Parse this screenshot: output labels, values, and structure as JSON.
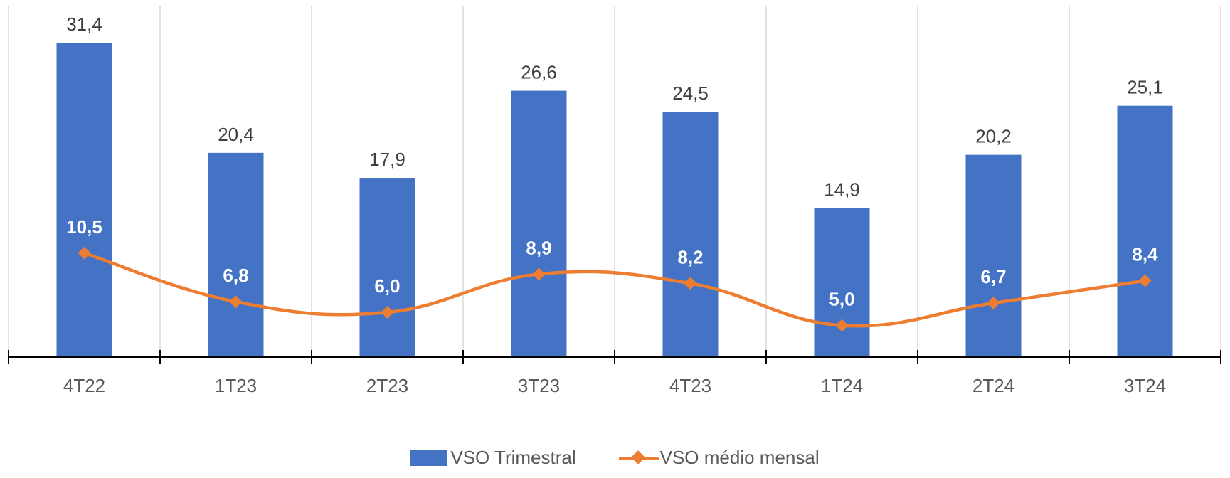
{
  "chart_data": {
    "type": "bar",
    "categories": [
      "4T22",
      "1T23",
      "2T23",
      "3T23",
      "4T23",
      "1T24",
      "2T24",
      "3T24"
    ],
    "series": [
      {
        "name": "VSO Trimestral",
        "kind": "bar",
        "color": "#4472C4",
        "values": [
          31.4,
          20.4,
          17.9,
          26.6,
          24.5,
          14.9,
          20.2,
          25.1
        ],
        "labels": [
          "31,4",
          "20,4",
          "17,9",
          "26,6",
          "24,5",
          "14,9",
          "20,2",
          "25,1"
        ]
      },
      {
        "name": "VSO médio mensal",
        "kind": "line",
        "marker": "diamond",
        "smooth": true,
        "color": "#ED7D31",
        "values": [
          10.5,
          6.8,
          6.0,
          8.9,
          8.2,
          5.0,
          6.7,
          8.4
        ],
        "labels": [
          "10,5",
          "6,8",
          "6,0",
          "8,9",
          "8,2",
          "5,0",
          "6,7",
          "8,4"
        ]
      }
    ],
    "title": "",
    "xlabel": "",
    "ylabel": "",
    "ylim": [
      0,
      35
    ],
    "grid": "vertical",
    "legend": "bottom"
  }
}
